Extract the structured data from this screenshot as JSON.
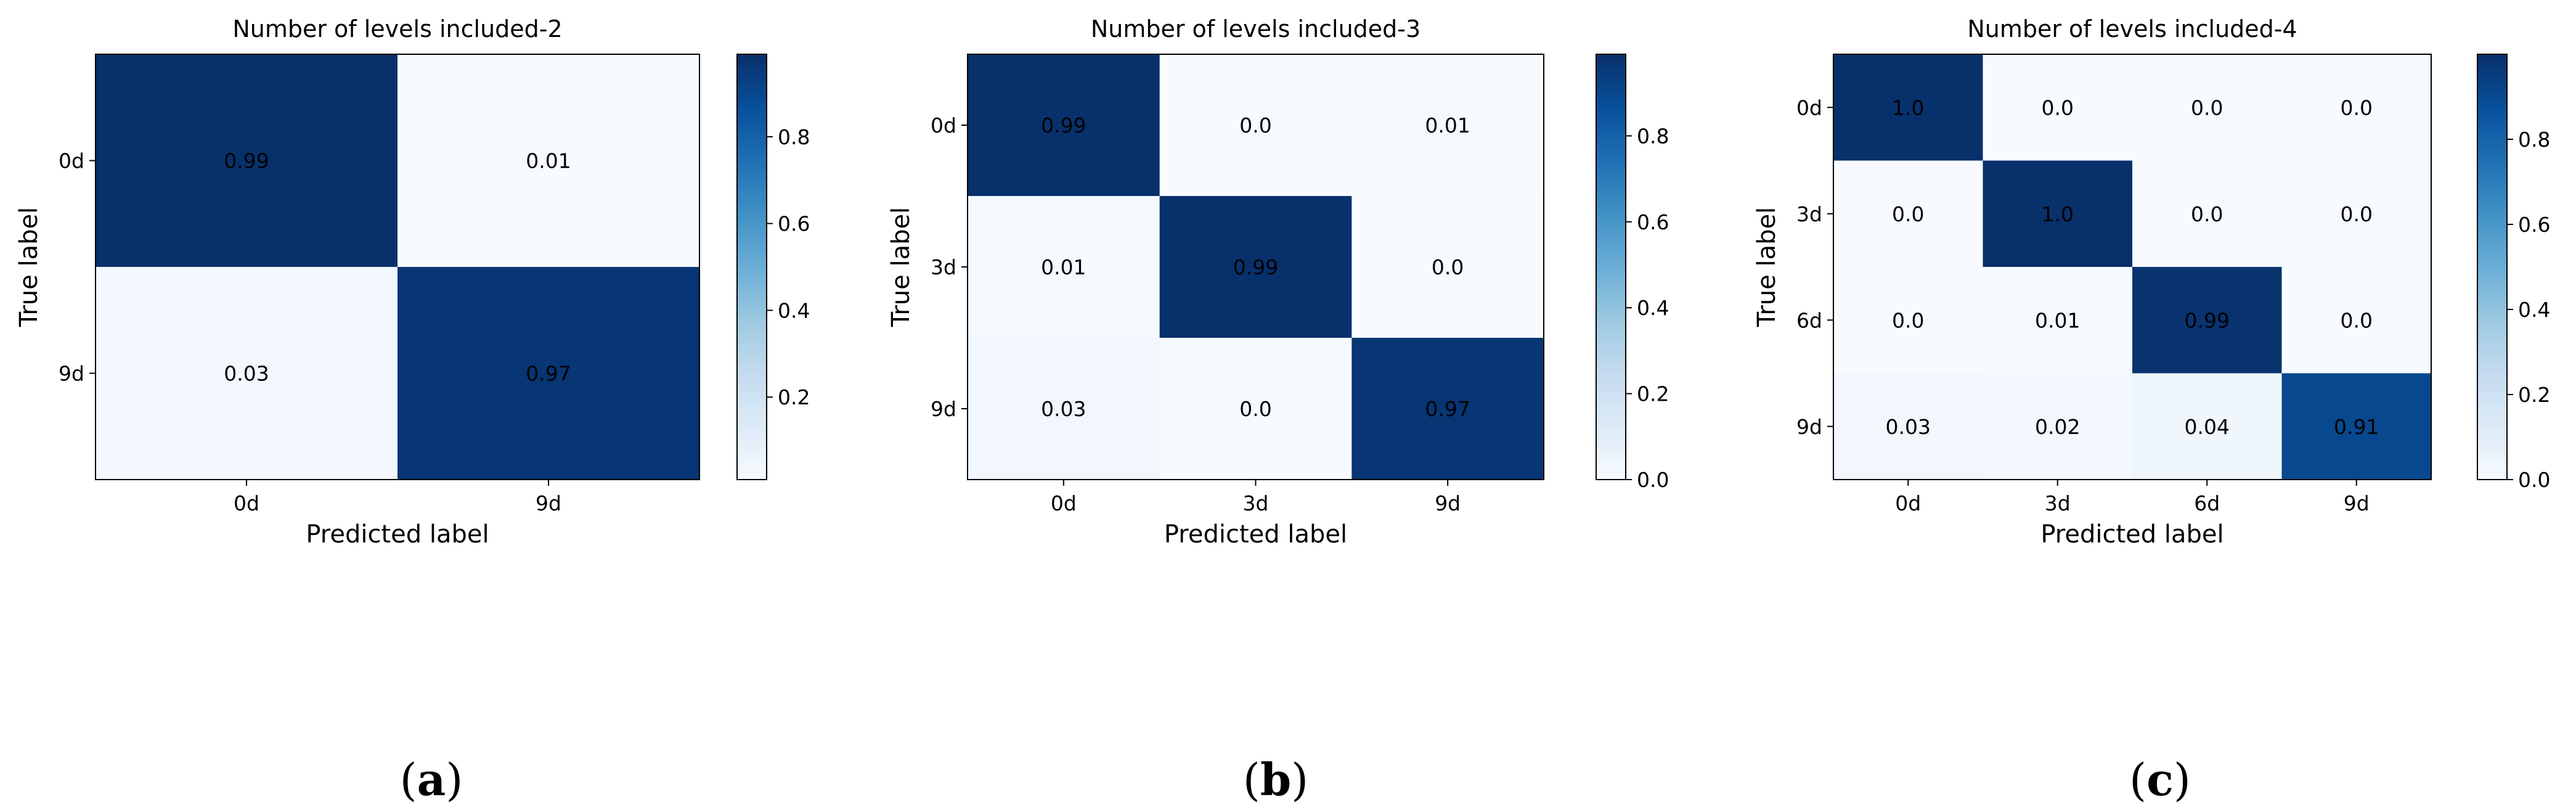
{
  "chart_data": [
    {
      "type": "heatmap",
      "title": "Number of levels included-2",
      "xlabel": "Predicted label",
      "ylabel": "True label",
      "x_categories": [
        "0d",
        "9d"
      ],
      "y_categories": [
        "0d",
        "9d"
      ],
      "values": [
        [
          0.99,
          0.01
        ],
        [
          0.03,
          0.97
        ]
      ],
      "labels": [
        [
          "0.99",
          "0.01"
        ],
        [
          "0.03",
          "0.97"
        ]
      ],
      "colorbar": {
        "range": [
          0.01,
          0.99
        ],
        "ticks": [
          "0.2",
          "0.4",
          "0.6",
          "0.8"
        ],
        "tick_values": [
          0.2,
          0.4,
          0.6,
          0.8
        ]
      },
      "colormap": "Blues",
      "panel_label": {
        "open": "(",
        "letter": "a",
        "close": ")"
      }
    },
    {
      "type": "heatmap",
      "title": "Number of levels included-3",
      "xlabel": "Predicted label",
      "ylabel": "True label",
      "x_categories": [
        "0d",
        "3d",
        "9d"
      ],
      "y_categories": [
        "0d",
        "3d",
        "9d"
      ],
      "values": [
        [
          0.99,
          0.0,
          0.01
        ],
        [
          0.01,
          0.99,
          0.0
        ],
        [
          0.03,
          0.0,
          0.97
        ]
      ],
      "labels": [
        [
          "0.99",
          "0.0",
          "0.01"
        ],
        [
          "0.01",
          "0.99",
          "0.0"
        ],
        [
          "0.03",
          "0.0",
          "0.97"
        ]
      ],
      "colorbar": {
        "range": [
          0.0,
          0.99
        ],
        "ticks": [
          "0.0",
          "0.2",
          "0.4",
          "0.6",
          "0.8"
        ],
        "tick_values": [
          0.0,
          0.2,
          0.4,
          0.6,
          0.8
        ]
      },
      "colormap": "Blues",
      "panel_label": {
        "open": "(",
        "letter": "b",
        "close": ")"
      }
    },
    {
      "type": "heatmap",
      "title": "Number of levels included-4",
      "xlabel": "Predicted label",
      "ylabel": "True label",
      "x_categories": [
        "0d",
        "3d",
        "6d",
        "9d"
      ],
      "y_categories": [
        "0d",
        "3d",
        "6d",
        "9d"
      ],
      "values": [
        [
          1.0,
          0.0,
          0.0,
          0.0
        ],
        [
          0.0,
          1.0,
          0.0,
          0.0
        ],
        [
          0.0,
          0.01,
          0.99,
          0.0
        ],
        [
          0.03,
          0.02,
          0.04,
          0.91
        ]
      ],
      "labels": [
        [
          "1.0",
          "0.0",
          "0.0",
          "0.0"
        ],
        [
          "0.0",
          "1.0",
          "0.0",
          "0.0"
        ],
        [
          "0.0",
          "0.01",
          "0.99",
          "0.0"
        ],
        [
          "0.03",
          "0.02",
          "0.04",
          "0.91"
        ]
      ],
      "colorbar": {
        "range": [
          0.0,
          1.0
        ],
        "ticks": [
          "0.0",
          "0.2",
          "0.4",
          "0.6",
          "0.8"
        ],
        "tick_values": [
          0.0,
          0.2,
          0.4,
          0.6,
          0.8
        ]
      },
      "colormap": "Blues",
      "panel_label": {
        "open": "(",
        "letter": "c",
        "close": ")"
      }
    }
  ]
}
